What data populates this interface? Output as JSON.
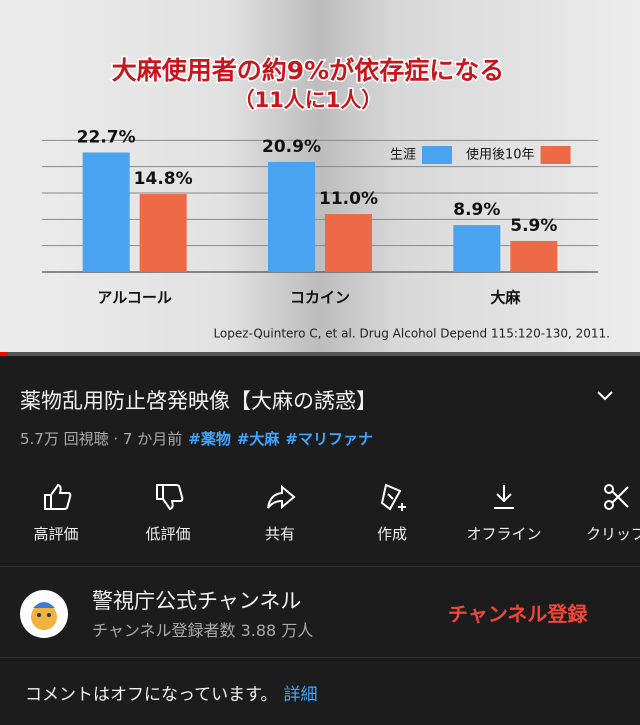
{
  "chart_data": {
    "type": "bar",
    "title": "大麻使用者の約9%が依存症になる",
    "subtitle": "（11人に1人）",
    "categories": [
      "アルコール",
      "コカイン",
      "大麻"
    ],
    "series": [
      {
        "name": "生涯",
        "color": "#4aa3f0",
        "values": [
          22.7,
          20.9,
          8.9
        ],
        "value_labels": [
          "22.7%",
          "20.9%",
          "8.9%"
        ]
      },
      {
        "name": "使用後10年",
        "color": "#ee6a46",
        "values": [
          14.8,
          11.0,
          5.9
        ],
        "value_labels": [
          "14.8%",
          "11.0%",
          "5.9%"
        ]
      }
    ],
    "ylim": [
      0,
      30
    ],
    "yticks": [
      0,
      5,
      10,
      15,
      20,
      25
    ],
    "grid": true,
    "legend": "top-right",
    "source": "Lopez-Quintero C, et al. Drug Alcohol Depend 115:120-130, 2011."
  },
  "video": {
    "title": "薬物乱用防止啓発映像【大麻の誘惑】",
    "meta": "5.7万 回視聴 · 7 か月前",
    "hashtags": [
      "#薬物",
      "#大麻",
      "#マリファナ"
    ]
  },
  "actions": [
    "高評価",
    "低評価",
    "共有",
    "作成",
    "オフライン",
    "クリップ"
  ],
  "channel": {
    "name": "警視庁公式チャンネル",
    "subscribers": "チャンネル登録者数 3.88 万人",
    "subscribe": "チャンネル登録"
  },
  "comments": {
    "text": "コメントはオフになっています。",
    "link": "詳細"
  }
}
